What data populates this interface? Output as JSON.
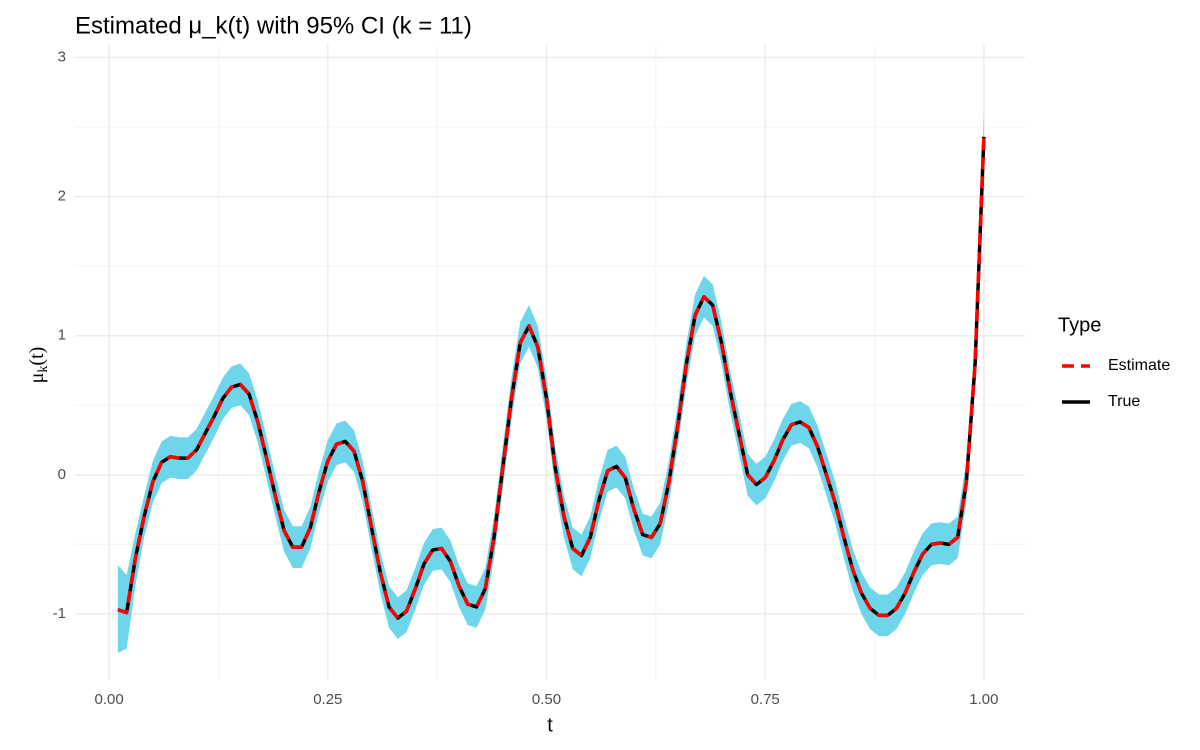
{
  "chart_data": {
    "type": "line",
    "title": "Estimated μ_k(t) with 95% CI (k = 11)",
    "x_label": "t",
    "y_label": [
      "μ",
      "k",
      "(t)"
    ],
    "legend_title": "Type",
    "legend_position": "right",
    "grid": true,
    "xlim": [
      -0.039,
      1.047
    ],
    "ylim": [
      -1.475,
      3.09
    ],
    "xticks": [
      {
        "value": 0,
        "label": "0.00"
      },
      {
        "value": 0.25,
        "label": "0.25"
      },
      {
        "value": 0.5,
        "label": "0.50"
      },
      {
        "value": 0.75,
        "label": "0.75"
      },
      {
        "value": 1,
        "label": "1.00"
      }
    ],
    "yticks": [
      -1,
      0,
      1,
      2,
      3
    ],
    "x": [
      0.01,
      0.02,
      0.03,
      0.04,
      0.05,
      0.06,
      0.07,
      0.08,
      0.09,
      0.1,
      0.11,
      0.12,
      0.13,
      0.14,
      0.15,
      0.16,
      0.17,
      0.18,
      0.19,
      0.2,
      0.21,
      0.22,
      0.23,
      0.24,
      0.25,
      0.26,
      0.27,
      0.28,
      0.29,
      0.3,
      0.31,
      0.32,
      0.33,
      0.34,
      0.35,
      0.36,
      0.37,
      0.38,
      0.39,
      0.4,
      0.41,
      0.42,
      0.43,
      0.44,
      0.45,
      0.46,
      0.47,
      0.48,
      0.49,
      0.5,
      0.51,
      0.52,
      0.53,
      0.54,
      0.55,
      0.56,
      0.57,
      0.58,
      0.59,
      0.6,
      0.61,
      0.62,
      0.63,
      0.64,
      0.65,
      0.66,
      0.67,
      0.68,
      0.69,
      0.7,
      0.71,
      0.72,
      0.73,
      0.74,
      0.75,
      0.76,
      0.77,
      0.78,
      0.79,
      0.8,
      0.81,
      0.82,
      0.83,
      0.84,
      0.85,
      0.86,
      0.87,
      0.88,
      0.89,
      0.9,
      0.91,
      0.92,
      0.93,
      0.94,
      0.95,
      0.96,
      0.97,
      0.98,
      0.99,
      1.0
    ],
    "ribbon": {
      "color": "#6dd6ea",
      "upper": [
        -0.65,
        -0.72,
        -0.42,
        -0.15,
        0.1,
        0.24,
        0.28,
        0.27,
        0.27,
        0.33,
        0.45,
        0.57,
        0.7,
        0.78,
        0.8,
        0.73,
        0.53,
        0.27,
        0,
        -0.25,
        -0.37,
        -0.37,
        -0.23,
        0.03,
        0.25,
        0.37,
        0.39,
        0.32,
        0.1,
        -0.23,
        -0.55,
        -0.8,
        -0.88,
        -0.83,
        -0.67,
        -0.49,
        -0.39,
        -0.38,
        -0.47,
        -0.65,
        -0.78,
        -0.8,
        -0.67,
        -0.3,
        0.2,
        0.7,
        1.1,
        1.22,
        1.07,
        0.7,
        0.2,
        -0.15,
        -0.38,
        -0.43,
        -0.3,
        -0.03,
        0.18,
        0.21,
        0.13,
        -0.1,
        -0.28,
        -0.3,
        -0.2,
        0.1,
        0.5,
        0.95,
        1.3,
        1.43,
        1.37,
        1.1,
        0.75,
        0.45,
        0.15,
        0.08,
        0.13,
        0.25,
        0.4,
        0.51,
        0.53,
        0.49,
        0.35,
        0.15,
        -0.05,
        -0.3,
        -0.53,
        -0.7,
        -0.81,
        -0.86,
        -0.86,
        -0.81,
        -0.7,
        -0.55,
        -0.42,
        -0.35,
        -0.34,
        -0.35,
        -0.3,
        0.1,
        0.95,
        2.6
      ],
      "lower": [
        -1.28,
        -1.25,
        -0.8,
        -0.45,
        -0.2,
        -0.06,
        -0.02,
        -0.03,
        -0.03,
        0.03,
        0.15,
        0.27,
        0.4,
        0.48,
        0.5,
        0.43,
        0.23,
        -0.03,
        -0.3,
        -0.55,
        -0.67,
        -0.67,
        -0.53,
        -0.27,
        -0.05,
        0.07,
        0.09,
        0.02,
        -0.2,
        -0.53,
        -0.85,
        -1.1,
        -1.18,
        -1.13,
        -0.97,
        -0.79,
        -0.69,
        -0.68,
        -0.77,
        -0.95,
        -1.08,
        -1.1,
        -0.97,
        -0.6,
        -0.1,
        0.4,
        0.8,
        0.92,
        0.77,
        0.4,
        -0.1,
        -0.45,
        -0.68,
        -0.73,
        -0.6,
        -0.33,
        -0.12,
        -0.09,
        -0.17,
        -0.4,
        -0.58,
        -0.6,
        -0.5,
        -0.2,
        0.2,
        0.65,
        1,
        1.13,
        1.07,
        0.8,
        0.45,
        0.15,
        -0.15,
        -0.22,
        -0.17,
        -0.05,
        0.1,
        0.21,
        0.23,
        0.19,
        0.05,
        -0.15,
        -0.35,
        -0.6,
        -0.83,
        -1,
        -1.11,
        -1.16,
        -1.16,
        -1.11,
        -1,
        -0.85,
        -0.72,
        -0.65,
        -0.64,
        -0.65,
        -0.6,
        -0.2,
        0.65,
        2.28
      ]
    },
    "series": [
      {
        "name": "Estimate",
        "color": "#ff0000",
        "dashed": true,
        "values": [
          -0.97,
          -0.99,
          -0.6,
          -0.3,
          -0.05,
          0.09,
          0.13,
          0.12,
          0.12,
          0.18,
          0.3,
          0.42,
          0.55,
          0.63,
          0.65,
          0.58,
          0.38,
          0.12,
          -0.15,
          -0.4,
          -0.52,
          -0.52,
          -0.38,
          -0.12,
          0.1,
          0.22,
          0.24,
          0.17,
          -0.05,
          -0.38,
          -0.7,
          -0.95,
          -1.03,
          -0.98,
          -0.82,
          -0.64,
          -0.54,
          -0.53,
          -0.62,
          -0.8,
          -0.93,
          -0.95,
          -0.82,
          -0.45,
          0.05,
          0.55,
          0.95,
          1.07,
          0.92,
          0.55,
          0.05,
          -0.3,
          -0.53,
          -0.58,
          -0.45,
          -0.18,
          0.03,
          0.06,
          -0.02,
          -0.25,
          -0.43,
          -0.45,
          -0.35,
          -0.05,
          0.35,
          0.8,
          1.15,
          1.28,
          1.22,
          0.95,
          0.6,
          0.3,
          0,
          -0.07,
          -0.02,
          0.1,
          0.25,
          0.36,
          0.38,
          0.34,
          0.2,
          0,
          -0.2,
          -0.45,
          -0.68,
          -0.85,
          -0.96,
          -1.01,
          -1.01,
          -0.96,
          -0.85,
          -0.7,
          -0.57,
          -0.5,
          -0.49,
          -0.5,
          -0.45,
          -0.05,
          0.8,
          2.43
        ]
      },
      {
        "name": "True",
        "color": "#000000",
        "dashed": false,
        "values": [
          -0.97,
          -0.99,
          -0.6,
          -0.3,
          -0.05,
          0.09,
          0.13,
          0.12,
          0.12,
          0.18,
          0.3,
          0.42,
          0.55,
          0.63,
          0.65,
          0.58,
          0.38,
          0.12,
          -0.15,
          -0.4,
          -0.52,
          -0.52,
          -0.38,
          -0.12,
          0.1,
          0.22,
          0.24,
          0.17,
          -0.05,
          -0.38,
          -0.7,
          -0.95,
          -1.03,
          -0.98,
          -0.82,
          -0.64,
          -0.54,
          -0.53,
          -0.62,
          -0.8,
          -0.93,
          -0.95,
          -0.82,
          -0.45,
          0.05,
          0.55,
          0.95,
          1.07,
          0.92,
          0.55,
          0.05,
          -0.3,
          -0.53,
          -0.58,
          -0.45,
          -0.18,
          0.03,
          0.06,
          -0.02,
          -0.25,
          -0.43,
          -0.45,
          -0.35,
          -0.05,
          0.35,
          0.8,
          1.15,
          1.28,
          1.22,
          0.95,
          0.6,
          0.3,
          0,
          -0.07,
          -0.02,
          0.1,
          0.25,
          0.36,
          0.38,
          0.34,
          0.2,
          0,
          -0.2,
          -0.45,
          -0.68,
          -0.85,
          -0.96,
          -1.01,
          -1.01,
          -0.96,
          -0.85,
          -0.7,
          -0.57,
          -0.5,
          -0.49,
          -0.5,
          -0.45,
          -0.05,
          0.8,
          2.43
        ]
      }
    ]
  }
}
